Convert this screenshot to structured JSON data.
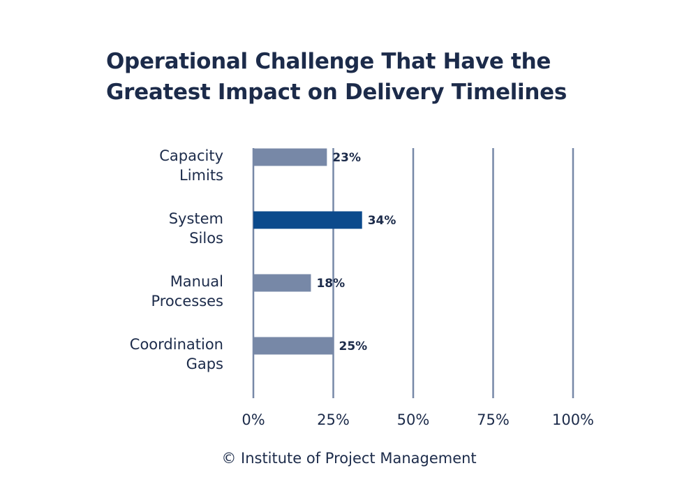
{
  "chart_data": {
    "type": "bar",
    "orientation": "horizontal",
    "title_lines": [
      "Operational Challenge That Have the",
      "Greatest Impact on Delivery Timelines"
    ],
    "categories": [
      [
        "Capacity",
        "Limits"
      ],
      [
        "System",
        "Silos"
      ],
      [
        "Manual",
        "Processes"
      ],
      [
        "Coordination",
        "Gaps"
      ]
    ],
    "values": [
      23,
      34,
      18,
      25
    ],
    "data_labels": [
      "23%",
      "34%",
      "18%",
      "25%"
    ],
    "highlight_index": 1,
    "xlim": [
      0,
      100
    ],
    "x_ticks": [
      0,
      25,
      50,
      75,
      100
    ],
    "x_tick_labels": [
      "0%",
      "25%",
      "50%",
      "75%",
      "100%"
    ],
    "grid": true,
    "colors": {
      "bar": "#7788a7",
      "highlight": "#0b4a8c",
      "grid": "#7788a7",
      "text": "#1c2b4a"
    }
  },
  "footer": {
    "credit": "© Institute of Project Management"
  }
}
